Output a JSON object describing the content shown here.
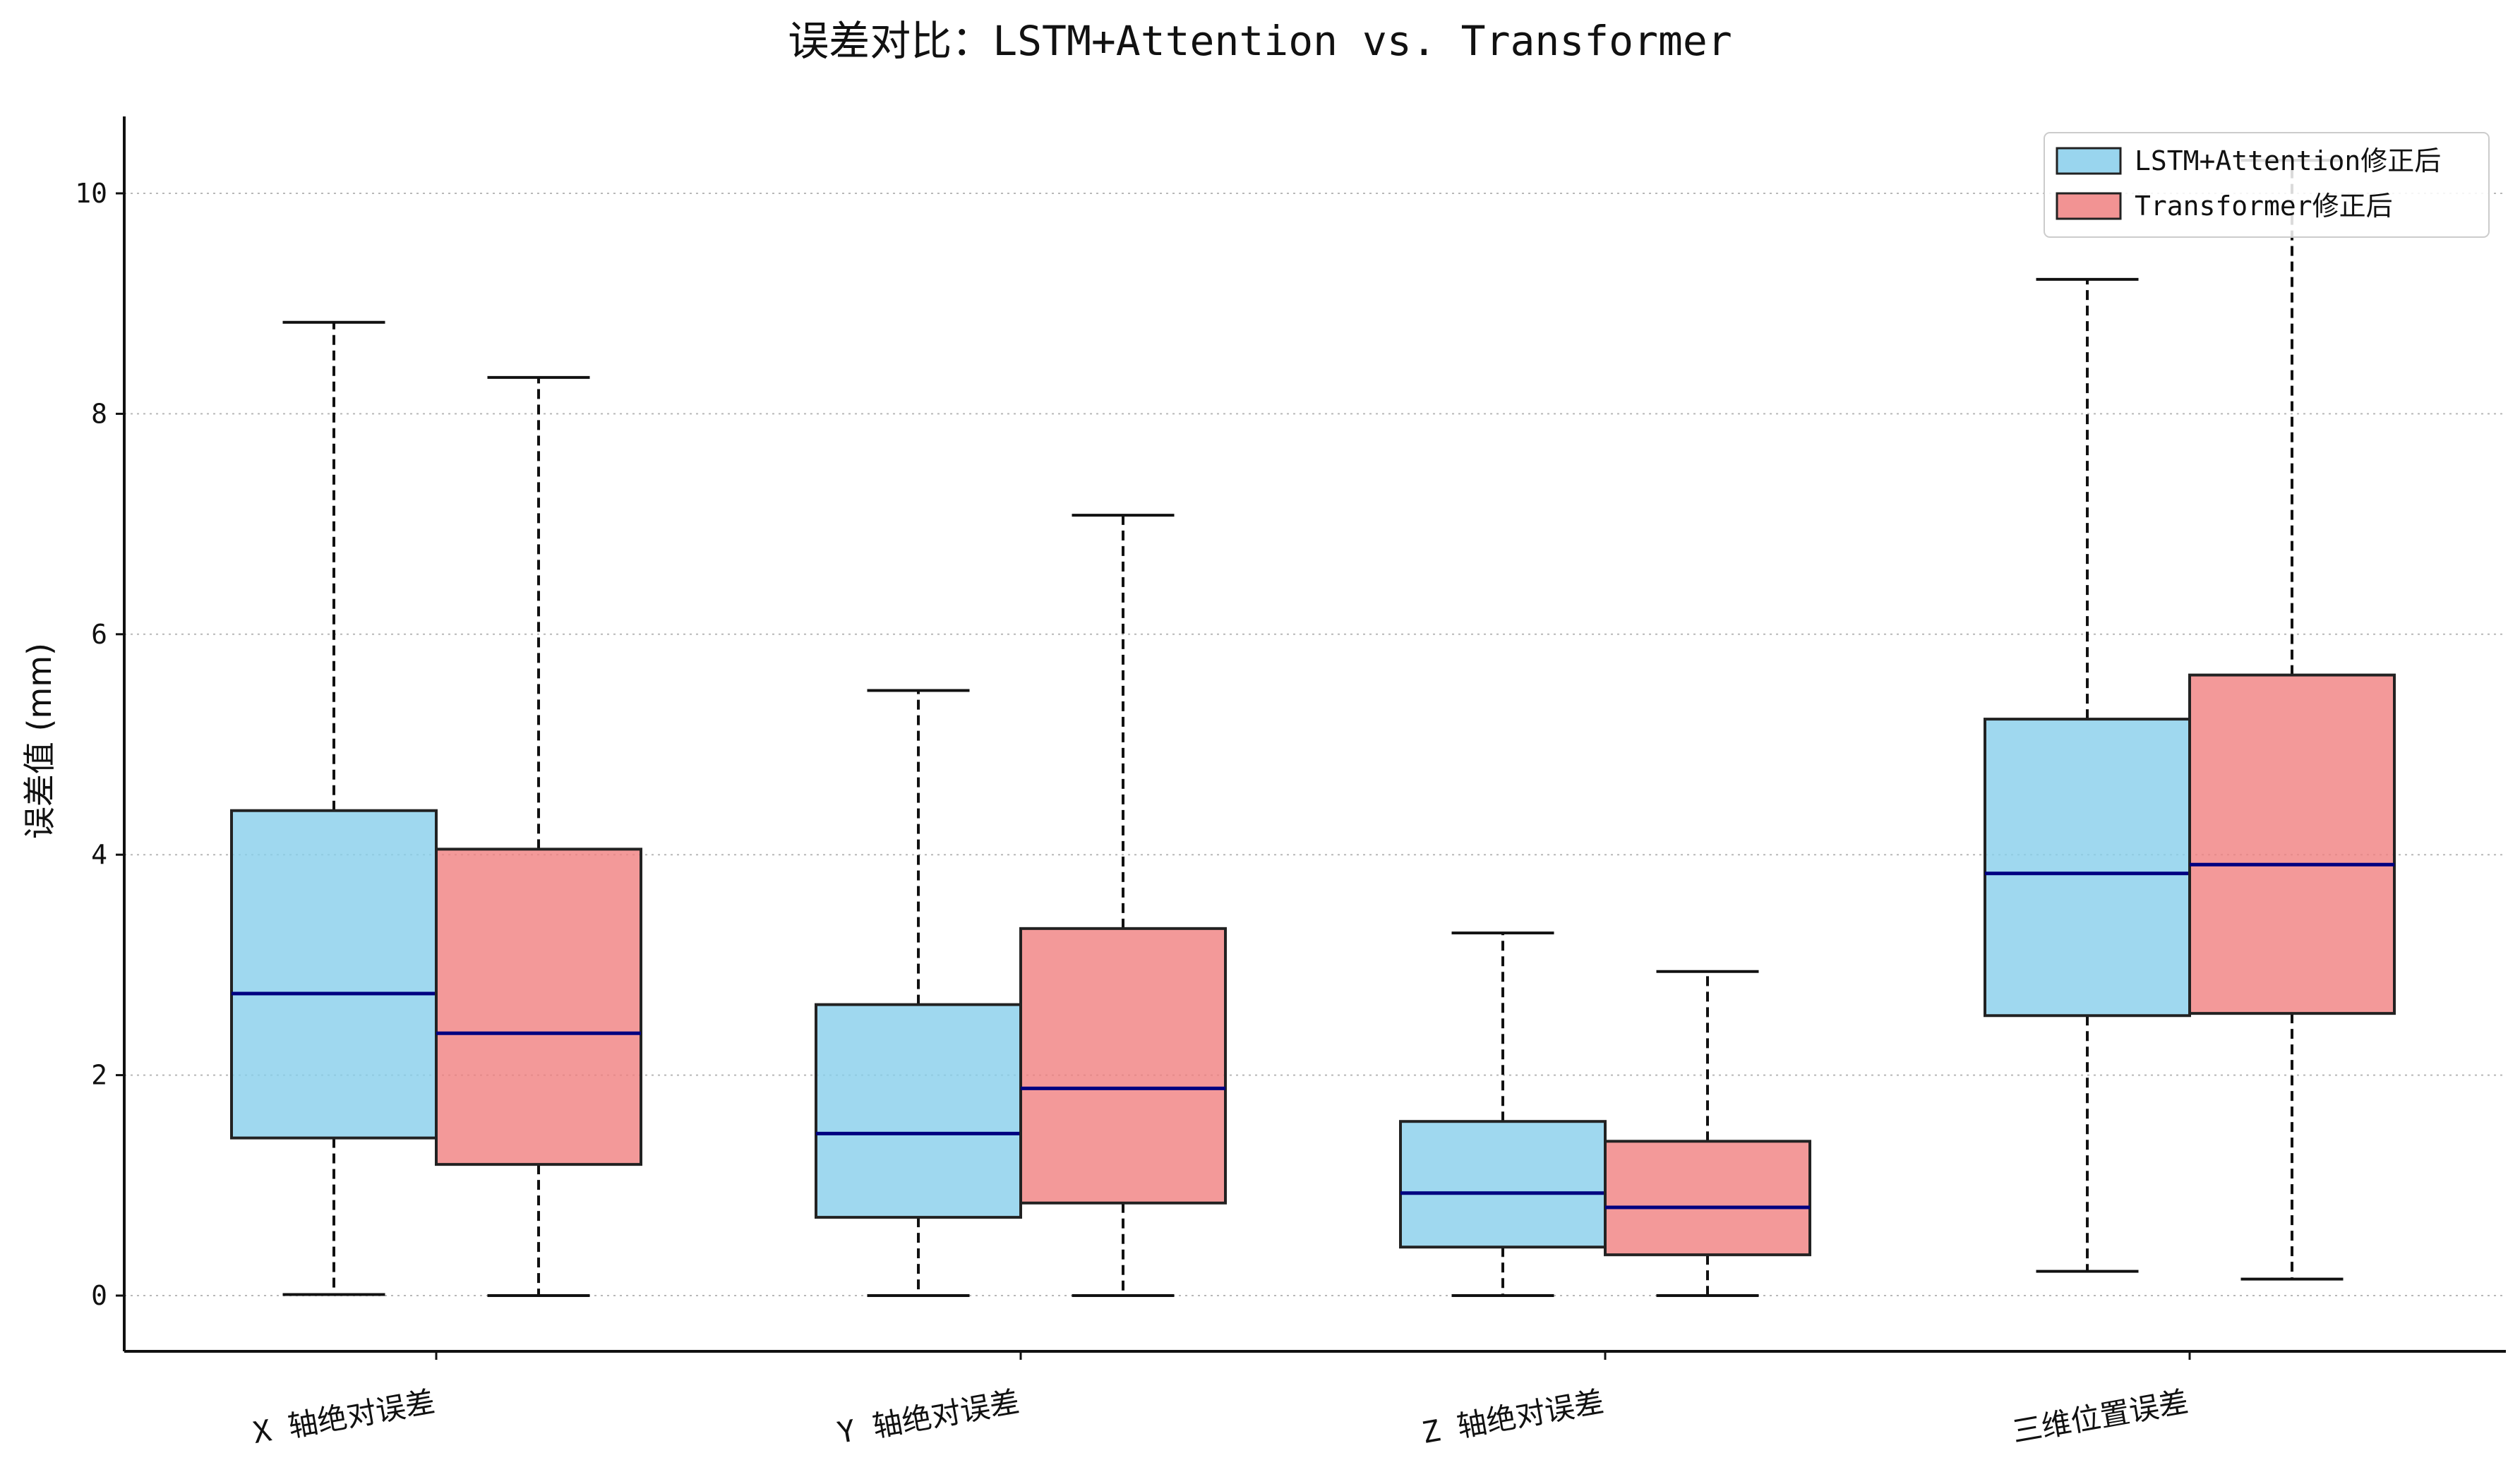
{
  "chart_data": {
    "type": "box",
    "title": "误差对比：LSTM+Attention vs. Transformer",
    "xlabel": "",
    "ylabel": "误差值 (mm)",
    "ylim": [
      -0.5,
      10.7
    ],
    "yticks": [
      0,
      2,
      4,
      6,
      8,
      10
    ],
    "grid": "y-dotted",
    "legend_position": "top-right",
    "categories": [
      "X 轴绝对误差",
      "Y 轴绝对误差",
      "Z 轴绝对误差",
      "三维位置误差"
    ],
    "series": [
      {
        "name": "LSTM+Attention修正后",
        "color": "#87CEEB",
        "boxes": [
          {
            "whislo": 0.01,
            "q1": 1.43,
            "med": 2.74,
            "q3": 4.4,
            "whishi": 8.83
          },
          {
            "whislo": 0.0,
            "q1": 0.71,
            "med": 1.47,
            "q3": 2.64,
            "whishi": 5.49
          },
          {
            "whislo": 0.0,
            "q1": 0.44,
            "med": 0.93,
            "q3": 1.58,
            "whishi": 3.29
          },
          {
            "whislo": 0.22,
            "q1": 2.54,
            "med": 3.83,
            "q3": 5.23,
            "whishi": 9.22
          }
        ]
      },
      {
        "name": "Transformer修正后",
        "color": "#F08080",
        "boxes": [
          {
            "whislo": 0.0,
            "q1": 1.19,
            "med": 2.38,
            "q3": 4.05,
            "whishi": 8.33
          },
          {
            "whislo": 0.0,
            "q1": 0.84,
            "med": 1.88,
            "q3": 3.33,
            "whishi": 7.08
          },
          {
            "whislo": 0.0,
            "q1": 0.37,
            "med": 0.8,
            "q3": 1.4,
            "whishi": 2.94
          },
          {
            "whislo": 0.15,
            "q1": 2.56,
            "med": 3.91,
            "q3": 5.63,
            "whishi": 10.3
          }
        ]
      }
    ],
    "median_color": "#000080",
    "edge_color": "#222222"
  }
}
